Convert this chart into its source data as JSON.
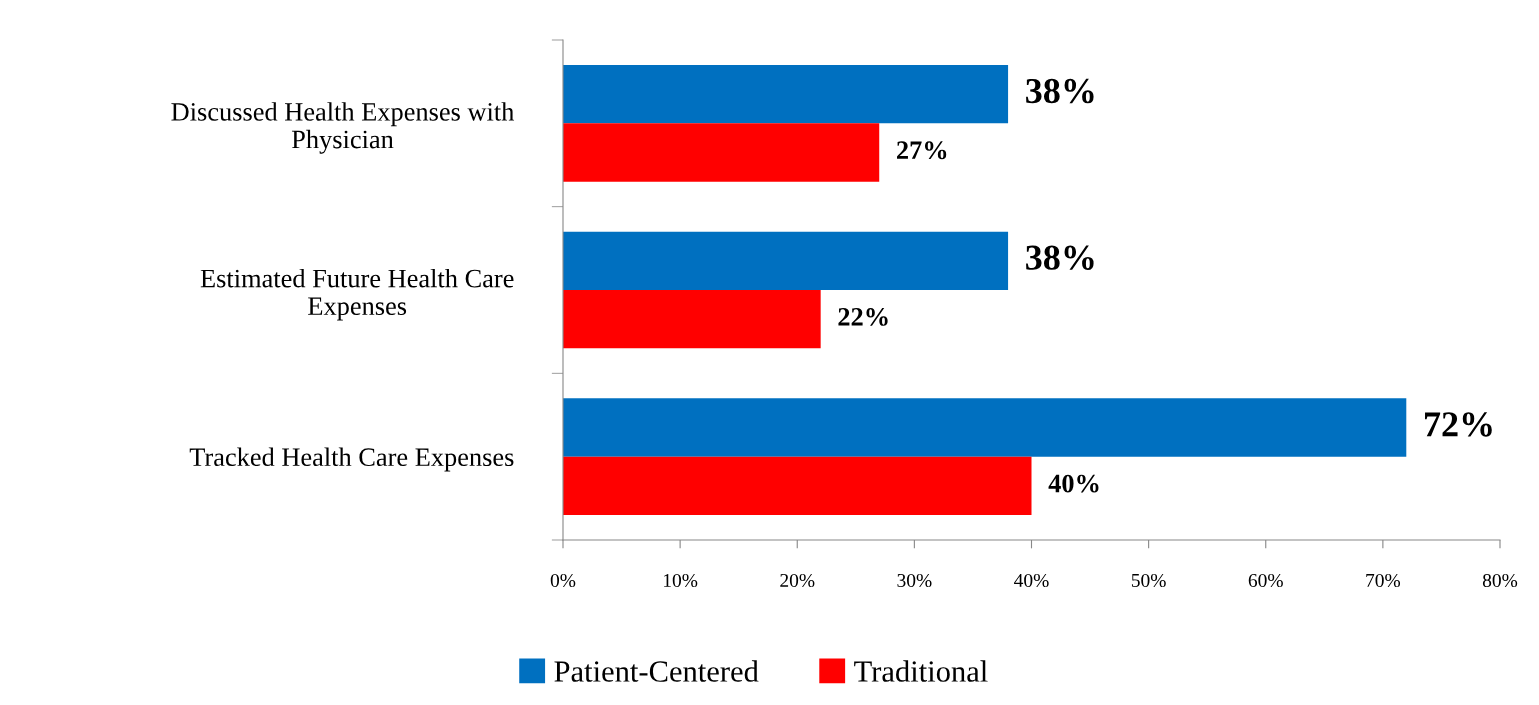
{
  "chart_data": {
    "type": "bar",
    "orientation": "horizontal",
    "categories": [
      "Discussed Health Expenses with\nPhysician",
      "Estimated Future Health Care\nExpenses",
      "Tracked Health Care Expenses"
    ],
    "series": [
      {
        "name": "Patient-Centered",
        "color": "#0070c0",
        "values": [
          38,
          38,
          72
        ],
        "value_labels": [
          "38%",
          "38%",
          "72%"
        ]
      },
      {
        "name": "Traditional",
        "color": "#ff0000",
        "values": [
          27,
          22,
          40
        ],
        "value_labels": [
          "27%",
          "22%",
          "40%"
        ]
      }
    ],
    "xlim": [
      0,
      80
    ],
    "xticks": [
      {
        "value": 0,
        "label": "0%"
      },
      {
        "value": 10,
        "label": "10%"
      },
      {
        "value": 20,
        "label": "20%"
      },
      {
        "value": 30,
        "label": "30%"
      },
      {
        "value": 40,
        "label": "40%"
      },
      {
        "value": 50,
        "label": "50%"
      },
      {
        "value": 60,
        "label": "60%"
      },
      {
        "value": 70,
        "label": "70%"
      },
      {
        "value": 80,
        "label": "80%"
      }
    ],
    "grid": false,
    "legend": "bottom"
  }
}
